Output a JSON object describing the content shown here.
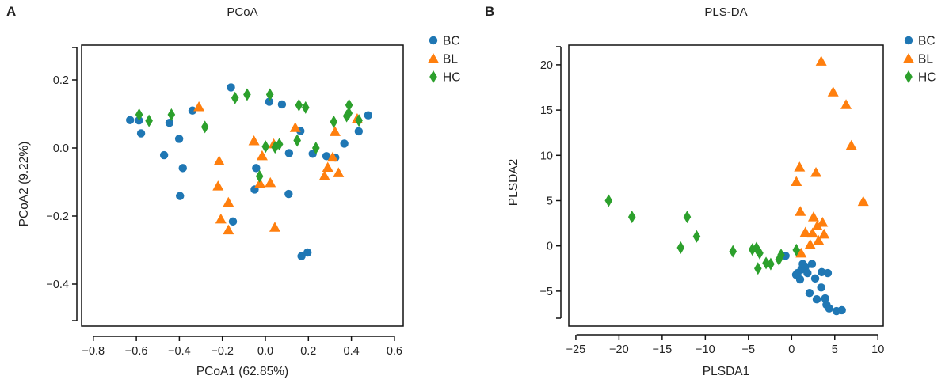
{
  "colors": {
    "BC": "#1f77b4",
    "BL": "#ff7f0e",
    "HC": "#2ca02c"
  },
  "chart_data": [
    {
      "panel_label": "A",
      "type": "scatter",
      "title": "PCoA",
      "xlabel": "PCoA1 (62.85%)",
      "ylabel": "PCoA2 (9.22%)",
      "xlim": [
        -0.8,
        0.6
      ],
      "ylim": [
        -0.5,
        0.3
      ],
      "xticks": [
        -0.8,
        -0.6,
        -0.4,
        -0.2,
        0.0,
        0.2,
        0.4,
        0.6
      ],
      "xtick_labels": [
        "−0.8",
        "−0.6",
        "−0.4",
        "−0.2",
        "0.0",
        "0.2",
        "0.4",
        "0.6"
      ],
      "yticks": [
        0.2,
        0.0,
        -0.2,
        -0.4
      ],
      "ytick_labels": [
        "0.2",
        "0.0",
        "−0.2",
        "−0.4"
      ],
      "grid": false,
      "legend": "outside-top-right",
      "series": [
        {
          "name": "BC",
          "marker": "circle",
          "points": [
            [
              -0.629,
              0.082
            ],
            [
              -0.588,
              0.081
            ],
            [
              -0.578,
              0.043
            ],
            [
              -0.446,
              0.074
            ],
            [
              -0.401,
              0.027
            ],
            [
              -0.471,
              -0.021
            ],
            [
              -0.384,
              -0.059
            ],
            [
              -0.397,
              -0.141
            ],
            [
              -0.339,
              0.11
            ],
            [
              -0.16,
              0.178
            ],
            [
              0.018,
              0.136
            ],
            [
              0.077,
              0.128
            ],
            [
              -0.151,
              -0.216
            ],
            [
              -0.043,
              -0.059
            ],
            [
              -0.05,
              -0.122
            ],
            [
              0.108,
              -0.135
            ],
            [
              0.11,
              -0.015
            ],
            [
              0.163,
              0.05
            ],
            [
              0.168,
              -0.318
            ],
            [
              0.196,
              -0.307
            ],
            [
              0.22,
              -0.017
            ],
            [
              0.284,
              -0.024
            ],
            [
              0.325,
              -0.028
            ],
            [
              0.367,
              0.013
            ],
            [
              0.434,
              0.049
            ],
            [
              0.478,
              0.096
            ]
          ]
        },
        {
          "name": "BL",
          "marker": "triangle",
          "points": [
            [
              -0.309,
              0.121
            ],
            [
              -0.215,
              -0.038
            ],
            [
              -0.22,
              -0.112
            ],
            [
              -0.172,
              -0.16
            ],
            [
              -0.207,
              -0.209
            ],
            [
              -0.172,
              -0.241
            ],
            [
              -0.053,
              0.021
            ],
            [
              -0.015,
              -0.023
            ],
            [
              -0.025,
              -0.104
            ],
            [
              0.023,
              -0.102
            ],
            [
              0.039,
              0.012
            ],
            [
              0.044,
              -0.233
            ],
            [
              0.139,
              0.06
            ],
            [
              0.324,
              0.048
            ],
            [
              0.313,
              -0.027
            ],
            [
              0.29,
              -0.057
            ],
            [
              0.275,
              -0.082
            ],
            [
              0.34,
              -0.073
            ],
            [
              0.427,
              0.086
            ]
          ]
        },
        {
          "name": "HC",
          "marker": "diamond",
          "points": [
            [
              -0.587,
              0.098
            ],
            [
              -0.541,
              0.08
            ],
            [
              -0.437,
              0.098
            ],
            [
              -0.281,
              0.062
            ],
            [
              -0.141,
              0.147
            ],
            [
              -0.085,
              0.157
            ],
            [
              0.021,
              0.157
            ],
            [
              0.001,
              0.004
            ],
            [
              0.045,
              0.002
            ],
            [
              0.065,
              0.011
            ],
            [
              -0.027,
              -0.083
            ],
            [
              0.148,
              0.022
            ],
            [
              0.156,
              0.126
            ],
            [
              0.187,
              0.119
            ],
            [
              0.235,
              0.0
            ],
            [
              0.318,
              0.077
            ],
            [
              0.378,
              0.094
            ],
            [
              0.389,
              0.126
            ],
            [
              0.388,
              0.102
            ],
            [
              0.435,
              0.081
            ]
          ]
        }
      ]
    },
    {
      "panel_label": "B",
      "type": "scatter",
      "title": "PLS-DA",
      "xlabel": "PLSDA1",
      "ylabel": "PLSDA2",
      "xlim": [
        -25,
        10
      ],
      "ylim": [
        -8,
        22
      ],
      "xticks": [
        -25,
        -20,
        -15,
        -10,
        -5,
        0,
        5,
        10
      ],
      "xtick_labels": [
        "−25",
        "−20",
        "−15",
        "−10",
        "−5",
        "0",
        "5",
        "10"
      ],
      "yticks": [
        20,
        15,
        10,
        5,
        0,
        -5
      ],
      "ytick_labels": [
        "20",
        "15",
        "10",
        "5",
        "0",
        "−5"
      ],
      "grid": false,
      "legend": "outside-top-right",
      "series": [
        {
          "name": "BC",
          "marker": "circle",
          "points": [
            [
              -0.7,
              -1.1
            ],
            [
              0.52,
              -3.2
            ],
            [
              0.98,
              -3.7
            ],
            [
              1.14,
              -2.6
            ],
            [
              1.6,
              -2.3
            ],
            [
              2.36,
              -2.0
            ],
            [
              1.84,
              -3.0
            ],
            [
              2.73,
              -3.6
            ],
            [
              3.49,
              -2.9
            ],
            [
              4.19,
              -3.0
            ],
            [
              0.68,
              -3.0
            ],
            [
              3.43,
              -4.6
            ],
            [
              2.08,
              -5.2
            ],
            [
              2.91,
              -5.9
            ],
            [
              3.89,
              -5.8
            ],
            [
              4.04,
              -6.5
            ],
            [
              4.35,
              -6.9
            ],
            [
              5.2,
              -7.2
            ],
            [
              5.82,
              -7.1
            ],
            [
              1.29,
              -2.0
            ]
          ]
        },
        {
          "name": "BL",
          "marker": "triangle",
          "points": [
            [
              3.43,
              20.4
            ],
            [
              4.81,
              17.0
            ],
            [
              6.31,
              15.6
            ],
            [
              6.92,
              11.1
            ],
            [
              0.92,
              8.7
            ],
            [
              0.55,
              7.1
            ],
            [
              2.82,
              8.1
            ],
            [
              8.3,
              4.9
            ],
            [
              1.01,
              3.8
            ],
            [
              2.54,
              3.2
            ],
            [
              3.58,
              2.6
            ],
            [
              2.97,
              2.2
            ],
            [
              1.6,
              1.5
            ],
            [
              2.42,
              1.4
            ],
            [
              3.76,
              1.3
            ],
            [
              3.12,
              0.6
            ],
            [
              2.15,
              0.15
            ],
            [
              1.1,
              -0.8
            ]
          ]
        },
        {
          "name": "HC",
          "marker": "diamond",
          "points": [
            [
              -21.2,
              5.0
            ],
            [
              -18.5,
              3.2
            ],
            [
              -12.1,
              3.2
            ],
            [
              -11.0,
              1.05
            ],
            [
              -12.85,
              -0.2
            ],
            [
              -6.8,
              -0.6
            ],
            [
              -4.55,
              -0.4
            ],
            [
              -4.07,
              -0.25
            ],
            [
              -3.7,
              -0.8
            ],
            [
              -3.9,
              -2.5
            ],
            [
              -2.96,
              -1.9
            ],
            [
              -2.42,
              -2.0
            ],
            [
              -1.47,
              -1.5
            ],
            [
              -1.22,
              -1.0
            ],
            [
              0.55,
              -0.45
            ]
          ]
        }
      ]
    }
  ]
}
